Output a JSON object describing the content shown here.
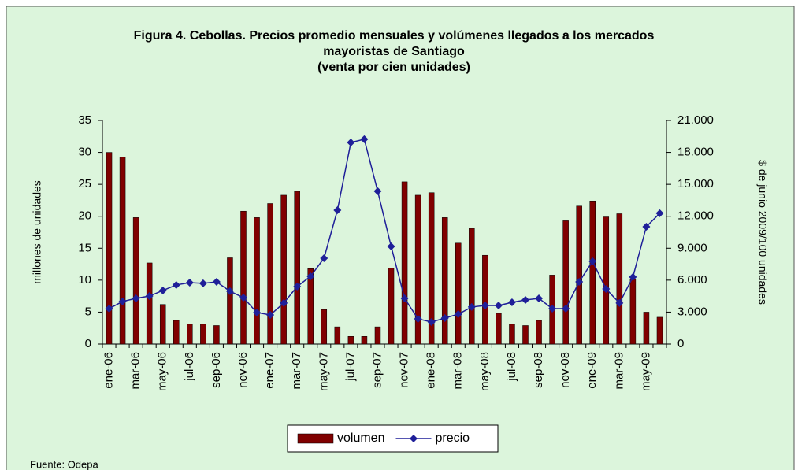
{
  "chart_data": {
    "type": "bar_line",
    "title": "Figura 4. Cebollas. Precios promedio mensuales y volúmenes llegados a los mercados mayoristas de Santiago",
    "subtitle": "(venta por cien unidades)",
    "ylabel": "millones de unidades",
    "y2label": "$ de junio 2009/100 unidades",
    "source": "Fuente: Odepa",
    "categories": [
      "ene-06",
      null,
      "mar-06",
      null,
      "may-06",
      null,
      "jul-06",
      null,
      "sep-06",
      null,
      "nov-06",
      null,
      "ene-07",
      null,
      "mar-07",
      null,
      "may-07",
      null,
      "jul-07",
      null,
      "sep-07",
      null,
      "nov-07",
      null,
      "ene-08",
      null,
      "mar-08",
      null,
      "may-08",
      null,
      "jul-08",
      null,
      "sep-08",
      null,
      "nov-08",
      null,
      "ene-09",
      null,
      "mar-09",
      null,
      "may-09",
      null
    ],
    "series": [
      {
        "name": "volumen",
        "color": "#800000",
        "kind": "bar",
        "values": [
          30,
          29.3,
          19.8,
          12.7,
          6.2,
          3.7,
          3.1,
          3.1,
          2.9,
          13.5,
          20.8,
          19.8,
          22,
          23.3,
          23.9,
          11.8,
          5.4,
          2.7,
          1.2,
          1.2,
          2.7,
          11.9,
          25.4,
          23.3,
          23.7,
          19.8,
          15.8,
          18.1,
          13.9,
          4.8,
          3.1,
          2.9,
          3.7,
          10.8,
          19.3,
          21.6,
          22.4,
          19.9,
          20.4,
          10.2,
          5.0,
          4.2
        ]
      },
      {
        "name": "precio",
        "color": "#1f1f99",
        "kind": "line",
        "axis": "y2",
        "values": [
          3330,
          4000,
          4290,
          4510,
          5030,
          5550,
          5770,
          5700,
          5840,
          4960,
          4360,
          2960,
          2740,
          3850,
          5400,
          6360,
          8060,
          12570,
          18930,
          19230,
          14350,
          9170,
          4290,
          2370,
          2070,
          2440,
          2810,
          3480,
          3620,
          3620,
          3920,
          4140,
          4290,
          3330,
          3330,
          5840,
          7770,
          5180,
          3850,
          6290,
          11020,
          12280
        ]
      }
    ],
    "ylim": [
      0,
      35
    ],
    "yticks": [
      0,
      5,
      10,
      15,
      20,
      25,
      30,
      35
    ],
    "y2lim": [
      0,
      21000
    ],
    "y2ticks": [
      0,
      {
        "value": 3000,
        "label": "3.000"
      },
      {
        "value": 6000,
        "label": "6.000"
      },
      {
        "value": 9000,
        "label": "9.000"
      },
      {
        "value": 12000,
        "label": "12.000"
      },
      {
        "value": 15000,
        "label": "15.000"
      },
      {
        "value": 18000,
        "label": "18.000"
      },
      {
        "value": 21000,
        "label": "21.000"
      }
    ],
    "legend": "bottom"
  }
}
